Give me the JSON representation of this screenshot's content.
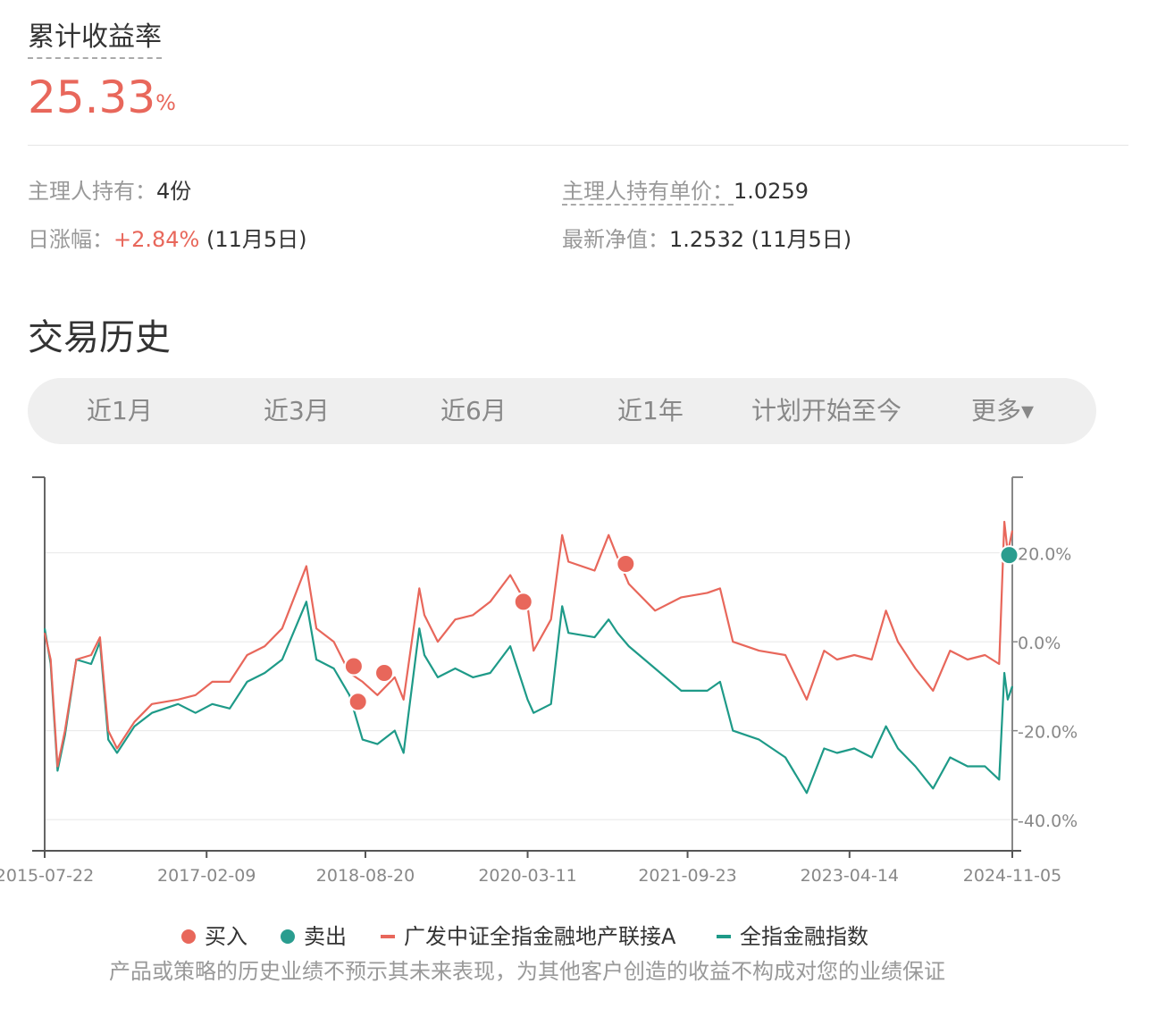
{
  "summary": {
    "title": "累计收益率",
    "value": "25.33",
    "unit": "%"
  },
  "info": {
    "holding_label": "主理人持有：",
    "holding_value": "4份",
    "unit_price_label": "主理人持有单价：",
    "unit_price_value": "1.0259",
    "daily_label": "日涨幅：",
    "daily_value": "+2.84%",
    "daily_date": " (11月5日)",
    "nav_label": "最新净值：",
    "nav_value": "1.2532 (11月5日)"
  },
  "history": {
    "title": "交易历史",
    "tabs": [
      "近1月",
      "近3月",
      "近6月",
      "近1年",
      "计划开始至今",
      "更多▾"
    ]
  },
  "colors": {
    "fund": "#E8675B",
    "index": "#1E9A88",
    "buy": "#E8675B",
    "sell": "#2A9D8F"
  },
  "chart_data": {
    "type": "line",
    "x_ticks": [
      "2015-07-22",
      "2017-02-09",
      "2018-08-20",
      "2020-03-11",
      "2021-09-23",
      "2023-04-14",
      "2024-11-05"
    ],
    "y_ticks": [
      "20.0%",
      "0.0%",
      "-20.0%",
      "-40.0%"
    ],
    "xlim": [
      "2015-07-22",
      "2024-11-05"
    ],
    "ylim": [
      -47,
      37
    ],
    "grid": true,
    "legend": {
      "position": "bottom",
      "items": [
        "买入",
        "卖出",
        "广发中证全指金融地产联接A",
        "全指金融指数"
      ]
    },
    "series": [
      {
        "name": "广发中证全指金融地产联接A",
        "points": [
          [
            "2015-07-22",
            2
          ],
          [
            "2015-08-12",
            -4
          ],
          [
            "2015-09-05",
            -28
          ],
          [
            "2015-10-01",
            -20
          ],
          [
            "2015-11-10",
            -4
          ],
          [
            "2016-01-01",
            -3
          ],
          [
            "2016-02-01",
            1
          ],
          [
            "2016-03-01",
            -20
          ],
          [
            "2016-04-01",
            -24
          ],
          [
            "2016-06-01",
            -18
          ],
          [
            "2016-08-01",
            -14
          ],
          [
            "2016-11-01",
            -13
          ],
          [
            "2017-01-01",
            -12
          ],
          [
            "2017-03-01",
            -9
          ],
          [
            "2017-05-01",
            -9
          ],
          [
            "2017-07-01",
            -3
          ],
          [
            "2017-09-01",
            -1
          ],
          [
            "2017-11-01",
            3
          ],
          [
            "2018-01-25",
            17
          ],
          [
            "2018-03-01",
            3
          ],
          [
            "2018-05-01",
            0
          ],
          [
            "2018-06-25",
            -7
          ],
          [
            "2018-08-10",
            -9
          ],
          [
            "2018-10-01",
            -12
          ],
          [
            "2018-12-01",
            -8
          ],
          [
            "2019-01-01",
            -13
          ],
          [
            "2019-02-25",
            12
          ],
          [
            "2019-03-15",
            6
          ],
          [
            "2019-05-01",
            0
          ],
          [
            "2019-07-01",
            5
          ],
          [
            "2019-09-01",
            6
          ],
          [
            "2019-11-01",
            9
          ],
          [
            "2020-01-10",
            15
          ],
          [
            "2020-03-11",
            8
          ],
          [
            "2020-04-01",
            -2
          ],
          [
            "2020-06-01",
            5
          ],
          [
            "2020-07-10",
            24
          ],
          [
            "2020-08-01",
            18
          ],
          [
            "2020-11-01",
            16
          ],
          [
            "2020-12-20",
            24
          ],
          [
            "2021-01-20",
            19
          ],
          [
            "2021-03-01",
            13
          ],
          [
            "2021-06-01",
            7
          ],
          [
            "2021-09-01",
            10
          ],
          [
            "2021-12-01",
            11
          ],
          [
            "2022-01-15",
            12
          ],
          [
            "2022-03-01",
            0
          ],
          [
            "2022-06-01",
            -2
          ],
          [
            "2022-09-01",
            -3
          ],
          [
            "2022-11-15",
            -13
          ],
          [
            "2023-01-15",
            -2
          ],
          [
            "2023-03-01",
            -4
          ],
          [
            "2023-05-01",
            -3
          ],
          [
            "2023-07-01",
            -4
          ],
          [
            "2023-08-20",
            7
          ],
          [
            "2023-10-01",
            0
          ],
          [
            "2023-12-01",
            -6
          ],
          [
            "2024-02-01",
            -11
          ],
          [
            "2024-04-01",
            -2
          ],
          [
            "2024-06-01",
            -4
          ],
          [
            "2024-08-01",
            -3
          ],
          [
            "2024-09-20",
            -5
          ],
          [
            "2024-10-08",
            27
          ],
          [
            "2024-10-20",
            20
          ],
          [
            "2024-11-05",
            25
          ]
        ]
      },
      {
        "name": "全指金融指数",
        "points": [
          [
            "2015-07-22",
            3
          ],
          [
            "2015-08-12",
            -5
          ],
          [
            "2015-09-05",
            -29
          ],
          [
            "2015-10-01",
            -21
          ],
          [
            "2015-11-10",
            -4
          ],
          [
            "2016-01-01",
            -5
          ],
          [
            "2016-02-01",
            0
          ],
          [
            "2016-03-01",
            -22
          ],
          [
            "2016-04-01",
            -25
          ],
          [
            "2016-06-01",
            -19
          ],
          [
            "2016-08-01",
            -16
          ],
          [
            "2016-11-01",
            -14
          ],
          [
            "2017-01-01",
            -16
          ],
          [
            "2017-03-01",
            -14
          ],
          [
            "2017-05-01",
            -15
          ],
          [
            "2017-07-01",
            -9
          ],
          [
            "2017-09-01",
            -7
          ],
          [
            "2017-11-01",
            -4
          ],
          [
            "2018-01-25",
            9
          ],
          [
            "2018-03-01",
            -4
          ],
          [
            "2018-05-01",
            -6
          ],
          [
            "2018-06-25",
            -12
          ],
          [
            "2018-08-10",
            -22
          ],
          [
            "2018-10-01",
            -23
          ],
          [
            "2018-12-01",
            -20
          ],
          [
            "2019-01-01",
            -25
          ],
          [
            "2019-02-25",
            3
          ],
          [
            "2019-03-15",
            -3
          ],
          [
            "2019-05-01",
            -8
          ],
          [
            "2019-07-01",
            -6
          ],
          [
            "2019-09-01",
            -8
          ],
          [
            "2019-11-01",
            -7
          ],
          [
            "2020-01-10",
            -1
          ],
          [
            "2020-03-11",
            -13
          ],
          [
            "2020-04-01",
            -16
          ],
          [
            "2020-06-01",
            -14
          ],
          [
            "2020-07-10",
            8
          ],
          [
            "2020-08-01",
            2
          ],
          [
            "2020-11-01",
            1
          ],
          [
            "2020-12-20",
            5
          ],
          [
            "2021-01-20",
            2
          ],
          [
            "2021-03-01",
            -1
          ],
          [
            "2021-06-01",
            -6
          ],
          [
            "2021-09-01",
            -11
          ],
          [
            "2021-12-01",
            -11
          ],
          [
            "2022-01-15",
            -9
          ],
          [
            "2022-03-01",
            -20
          ],
          [
            "2022-06-01",
            -22
          ],
          [
            "2022-09-01",
            -26
          ],
          [
            "2022-11-15",
            -34
          ],
          [
            "2023-01-15",
            -24
          ],
          [
            "2023-03-01",
            -25
          ],
          [
            "2023-05-01",
            -24
          ],
          [
            "2023-07-01",
            -26
          ],
          [
            "2023-08-20",
            -19
          ],
          [
            "2023-10-01",
            -24
          ],
          [
            "2023-12-01",
            -28
          ],
          [
            "2024-02-01",
            -33
          ],
          [
            "2024-04-01",
            -26
          ],
          [
            "2024-06-01",
            -28
          ],
          [
            "2024-08-01",
            -28
          ],
          [
            "2024-09-20",
            -31
          ],
          [
            "2024-10-08",
            -7
          ],
          [
            "2024-10-20",
            -13
          ],
          [
            "2024-11-05",
            -10
          ]
        ]
      }
    ],
    "markers": [
      {
        "type": "buy",
        "date": "2018-07-10",
        "value": -5.5
      },
      {
        "type": "buy",
        "date": "2018-07-25",
        "value": -13.5
      },
      {
        "type": "buy",
        "date": "2018-10-25",
        "value": -7
      },
      {
        "type": "buy",
        "date": "2020-02-25",
        "value": 9
      },
      {
        "type": "buy",
        "date": "2021-02-18",
        "value": 17.5
      },
      {
        "type": "sell",
        "date": "2024-10-25",
        "value": 19.5
      }
    ]
  },
  "footer": {
    "disclaimer": "产品或策略的历史业绩不预示其未来表现，为其他客户创造的收益不构成对您的业绩保证"
  }
}
